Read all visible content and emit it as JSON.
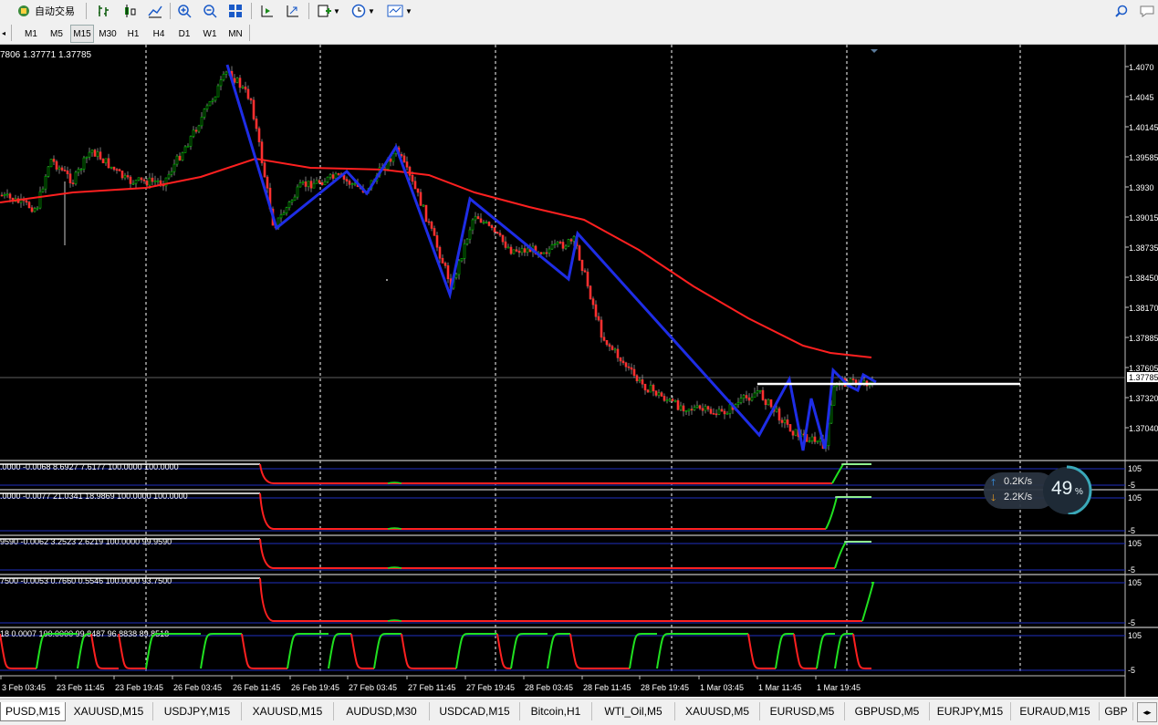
{
  "toolbar": {
    "autotrade_label": "自动交易",
    "timeframes": [
      "M1",
      "M5",
      "M15",
      "M30",
      "H1",
      "H4",
      "D1",
      "W1",
      "MN"
    ],
    "active_timeframe": "M15"
  },
  "chart": {
    "ohlc_text": "7806 1.37771 1.37785",
    "price_labels": [
      "1.4070",
      "1.4045",
      "1.40145",
      "1.39585",
      "1.3930",
      "1.39015",
      "1.38735",
      "1.38450",
      "1.38170",
      "1.37885",
      "1.37605",
      "1.37320",
      "1.37040"
    ],
    "current_price": "1.37785",
    "time_labels": [
      "3 Feb 03:45",
      "23 Feb 11:45",
      "23 Feb 19:45",
      "26 Feb 03:45",
      "26 Feb 11:45",
      "26 Feb 19:45",
      "27 Feb 03:45",
      "27 Feb 11:45",
      "27 Feb 19:45",
      "28 Feb 03:45",
      "28 Feb 11:45",
      "28 Feb 19:45",
      "1 Mar 03:45",
      "1 Mar 11:45",
      "1 Mar 19:45"
    ],
    "indicators": [
      {
        "header": ".0000 -0.0068 8.6927 7.6177 100.0000 100.0000",
        "level_top": "105",
        "level_bottom": "-5"
      },
      {
        "header": ".0000 -0.0077 21.0341 18.9869 100.0000 100.0000",
        "level_top": "105",
        "level_bottom": "-5"
      },
      {
        "header": "9590 -0.0062 3.2523 2.6219 100.0000 99.9590",
        "level_top": "105",
        "level_bottom": "-5"
      },
      {
        "header": "7500 -0.0053 0.7660 0.5546 100.0000 93.7500",
        "level_top": "105",
        "level_bottom": "-5"
      },
      {
        "header": "18 0.0007 100.0000 99.8487 96.8838 89.8518",
        "level_top": "105",
        "level_bottom": "-5"
      }
    ],
    "colors": {
      "background": "#000000",
      "candle_up": "#00c000",
      "candle_down": "#ff3030",
      "ma": "#ff2020",
      "zigzag": "#1e2de6",
      "grid": "#ffffff"
    }
  },
  "network_widget": {
    "upload": "0.2K/s",
    "download": "2.2K/s",
    "percent": "49",
    "percent_sign": "%"
  },
  "tabs": [
    "PUSD,M15",
    "XAUUSD,M15",
    "USDJPY,M15",
    "XAUUSD,M15",
    "AUDUSD,M30",
    "USDCAD,M15",
    "Bitcoin,H1",
    "WTI_Oil,M5",
    "XAUUSD,M5",
    "EURUSD,M5",
    "GBPUSD,M5",
    "EURJPY,M15",
    "EURAUD,M15",
    "GBP"
  ],
  "active_tab": 0
}
